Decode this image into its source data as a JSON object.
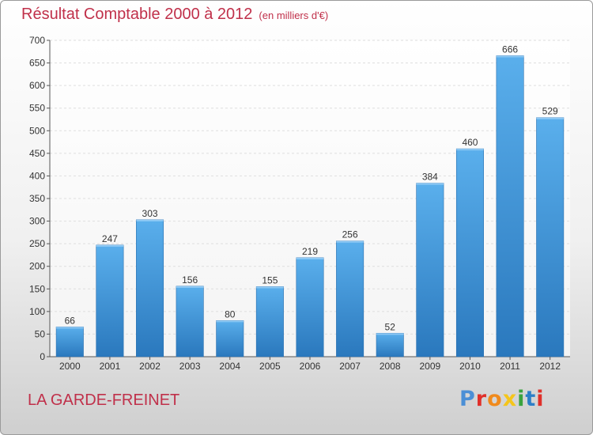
{
  "title": "Résultat Comptable 2000 à 2012",
  "subtitle": "(en milliers d'€)",
  "place": "LA GARDE-FREINET",
  "brand": {
    "text": "Proxiti",
    "colors": [
      "#4b8fd6",
      "#e0302a",
      "#f08a1c",
      "#f5c51b",
      "#3aa33e",
      "#2d7fc8",
      "#e0302a"
    ]
  },
  "chart_data": {
    "type": "bar",
    "title": "Résultat Comptable 2000 à 2012",
    "subtitle": "(en milliers d'€)",
    "categories": [
      "2000",
      "2001",
      "2002",
      "2003",
      "2004",
      "2005",
      "2006",
      "2007",
      "2008",
      "2009",
      "2010",
      "2011",
      "2012"
    ],
    "values": [
      66,
      247,
      303,
      156,
      80,
      155,
      219,
      256,
      52,
      384,
      460,
      666,
      529
    ],
    "yticks": [
      0,
      50,
      100,
      150,
      200,
      250,
      300,
      350,
      400,
      450,
      500,
      550,
      600,
      650,
      700
    ],
    "ylim": [
      0,
      700
    ],
    "grid": true,
    "bar_color": "#3f93d8"
  }
}
